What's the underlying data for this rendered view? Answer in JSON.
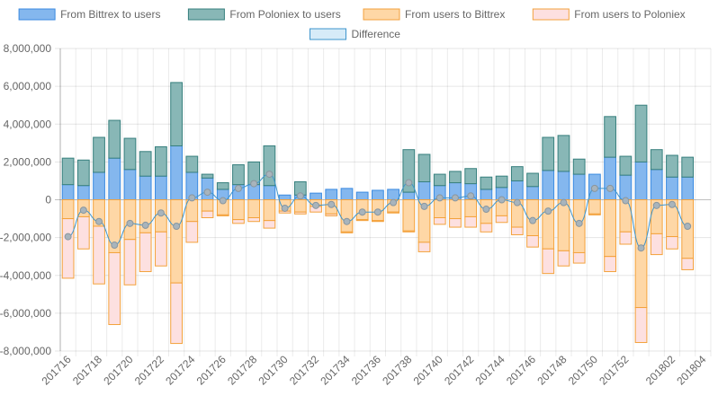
{
  "chart_data": {
    "type": "bar",
    "stacked": true,
    "categories": [
      "201716",
      "201717",
      "201718",
      "201719",
      "201720",
      "201721",
      "201722",
      "201723",
      "201724",
      "201725",
      "201726",
      "201727",
      "201728",
      "201729",
      "201730",
      "201731",
      "201732",
      "201733",
      "201734",
      "201735",
      "201736",
      "201737",
      "201738",
      "201739",
      "201740",
      "201741",
      "201742",
      "201743",
      "201744",
      "201745",
      "201746",
      "201747",
      "201748",
      "201749",
      "201750",
      "201751",
      "201752",
      "201753",
      "201801",
      "201802",
      "201803",
      "201804"
    ],
    "x_tick_labels": [
      "201716",
      "201718",
      "201720",
      "201722",
      "201724",
      "201726",
      "201728",
      "201730",
      "201732",
      "201734",
      "201736",
      "201738",
      "201740",
      "201742",
      "201744",
      "201746",
      "201748",
      "201750",
      "201752",
      "201802",
      "201804"
    ],
    "ylim": [
      -8000000,
      8000000
    ],
    "y_ticks": [
      8000000,
      6000000,
      4000000,
      2000000,
      0,
      -2000000,
      -4000000,
      -6000000,
      -8000000
    ],
    "y_tick_labels": [
      "8,000,000",
      "6,000,000",
      "4,000,000",
      "2,000,000",
      "0",
      "-2,000,000",
      "-4,000,000",
      "-6,000,000",
      "-8,000,000"
    ],
    "grid": true,
    "legend_position": "top",
    "series": [
      {
        "name": "From Bittrex to users",
        "kind": "bar",
        "stack": "positive",
        "fill": "#84b7ee",
        "stroke": "#3a8ae0",
        "values": [
          800000,
          750000,
          1450000,
          2200000,
          1600000,
          1250000,
          1250000,
          2850000,
          1450000,
          1150000,
          550000,
          800000,
          800000,
          750000,
          250000,
          250000,
          350000,
          550000,
          600000,
          400000,
          500000,
          550000,
          400000,
          950000,
          750000,
          900000,
          850000,
          550000,
          650000,
          1000000,
          700000,
          1550000,
          1500000,
          1350000,
          1350000,
          2250000,
          1300000,
          2000000,
          1600000,
          1200000,
          1200000,
          0
        ]
      },
      {
        "name": "From Poloniex to users",
        "kind": "bar",
        "stack": "positive",
        "fill": "#88b7b6",
        "stroke": "#367f7d",
        "values": [
          1400000,
          1350000,
          1850000,
          2000000,
          1650000,
          1300000,
          1550000,
          3350000,
          850000,
          200000,
          350000,
          1050000,
          1200000,
          2100000,
          0,
          700000,
          0,
          0,
          0,
          0,
          0,
          0,
          2250000,
          1450000,
          600000,
          600000,
          800000,
          650000,
          600000,
          750000,
          700000,
          1750000,
          1900000,
          800000,
          0,
          2150000,
          1000000,
          3000000,
          1050000,
          1150000,
          1050000,
          0
        ]
      },
      {
        "name": "From users to Bittrex",
        "kind": "bar",
        "stack": "negative",
        "fill": "#fed7a6",
        "stroke": "#f3a23c",
        "values": [
          -1000000,
          -900000,
          -1400000,
          -2800000,
          -2100000,
          -1750000,
          -1700000,
          -4400000,
          -1150000,
          -600000,
          -800000,
          -1050000,
          -950000,
          -1100000,
          -600000,
          -650000,
          -350000,
          -750000,
          -1700000,
          -1050000,
          -1100000,
          -650000,
          -1650000,
          -2250000,
          -950000,
          -1000000,
          -900000,
          -1250000,
          -850000,
          -1450000,
          -1900000,
          -2600000,
          -2700000,
          -2800000,
          -750000,
          -3000000,
          -1700000,
          -5700000,
          -1800000,
          -1950000,
          -3100000,
          0
        ]
      },
      {
        "name": "From users to Poloniex",
        "kind": "bar",
        "stack": "negative",
        "fill": "#fde0e0",
        "stroke": "#f3a23c",
        "values": [
          -3150000,
          -1700000,
          -3050000,
          -3800000,
          -2400000,
          -2050000,
          -1800000,
          -3200000,
          -1100000,
          -350000,
          -50000,
          -200000,
          -200000,
          -400000,
          -100000,
          -100000,
          -300000,
          -100000,
          -50000,
          -50000,
          -50000,
          -50000,
          -50000,
          -500000,
          -350000,
          -450000,
          -550000,
          -450000,
          -350000,
          -400000,
          -600000,
          -1300000,
          -800000,
          -550000,
          -50000,
          -800000,
          -650000,
          -1850000,
          -1100000,
          -650000,
          -600000,
          0
        ]
      },
      {
        "name": "Difference",
        "kind": "line",
        "fill": "#d6ebf8",
        "stroke": "#3e95cd",
        "point_color": "#a8b4bc",
        "values": [
          -1950000,
          -550000,
          -1150000,
          -2400000,
          -1250000,
          -1350000,
          -700000,
          -1400000,
          100000,
          400000,
          -50000,
          600000,
          850000,
          1350000,
          -450000,
          200000,
          -300000,
          -250000,
          -1150000,
          -650000,
          -650000,
          -150000,
          900000,
          -350000,
          100000,
          100000,
          200000,
          -500000,
          0,
          -150000,
          -1100000,
          -600000,
          -150000,
          -1250000,
          600000,
          600000,
          -50000,
          -2550000,
          -300000,
          -250000,
          -1400000,
          0
        ]
      }
    ]
  }
}
